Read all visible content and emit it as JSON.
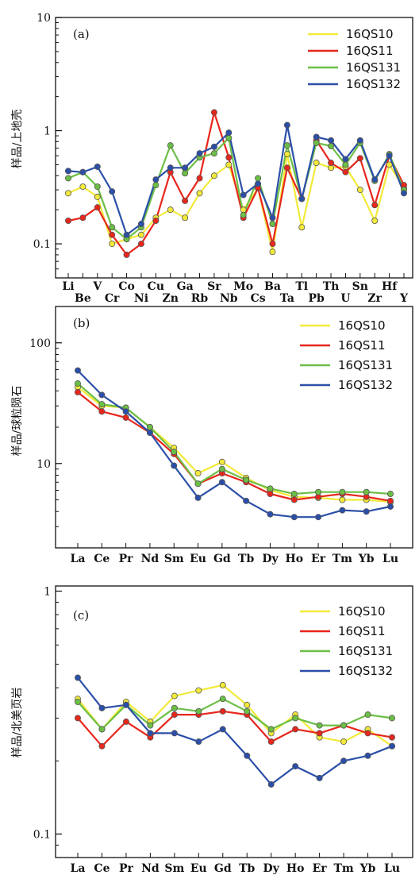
{
  "chart_data": [
    {
      "type": "line",
      "panel_label": "(a)",
      "ylabel": "样品/上地壳",
      "yscale": "log",
      "ylim": [
        0.05,
        10
      ],
      "yticks": [
        0.1,
        1,
        10
      ],
      "yticklabels": [
        "0.1",
        "1",
        "10"
      ],
      "categories": [
        "Li",
        "Be",
        "V",
        "Cr",
        "Co",
        "Ni",
        "Cu",
        "Zn",
        "Ga",
        "Rb",
        "Sr",
        "Nb",
        "Mo",
        "Cs",
        "Ba",
        "Ta",
        "Tl",
        "Pb",
        "Th",
        "U",
        "Sn",
        "Zr",
        "Hf",
        "Y"
      ],
      "legend_position": "top-right",
      "series": [
        {
          "name": "16QS10",
          "color": "#f2ea3a",
          "values": [
            0.28,
            0.32,
            0.26,
            0.1,
            0.11,
            0.12,
            0.17,
            0.2,
            0.17,
            0.28,
            0.4,
            0.5,
            0.2,
            0.31,
            0.085,
            0.62,
            0.14,
            0.52,
            0.47,
            0.48,
            0.3,
            0.16,
            0.5,
            0.31
          ]
        },
        {
          "name": "16QS11",
          "color": "#e8261c",
          "values": [
            0.16,
            0.17,
            0.21,
            0.12,
            0.08,
            0.1,
            0.16,
            0.43,
            0.24,
            0.38,
            1.45,
            0.58,
            0.17,
            0.31,
            0.1,
            0.47,
            0.25,
            0.82,
            0.52,
            0.43,
            0.57,
            0.22,
            0.6,
            0.33
          ]
        },
        {
          "name": "16QS131",
          "color": "#6cbf46",
          "values": [
            0.38,
            0.43,
            0.32,
            0.14,
            0.11,
            0.14,
            0.33,
            0.74,
            0.42,
            0.58,
            0.63,
            0.86,
            0.18,
            0.38,
            0.15,
            0.74,
            0.25,
            0.78,
            0.73,
            0.5,
            0.78,
            0.36,
            0.62,
            0.3
          ]
        },
        {
          "name": "16QS132",
          "color": "#2b4fa8",
          "values": [
            0.44,
            0.43,
            0.48,
            0.29,
            0.12,
            0.15,
            0.37,
            0.47,
            0.47,
            0.63,
            0.72,
            0.96,
            0.27,
            0.34,
            0.17,
            1.12,
            0.25,
            0.88,
            0.82,
            0.56,
            0.82,
            0.37,
            0.6,
            0.28
          ]
        }
      ]
    },
    {
      "type": "line",
      "panel_label": "(b)",
      "ylabel": "样品/球粒陨石",
      "yscale": "log",
      "ylim": [
        2,
        200
      ],
      "yticks": [
        10,
        100
      ],
      "yticklabels": [
        "10",
        "100"
      ],
      "categories": [
        "La",
        "Ce",
        "Pr",
        "Nd",
        "Sm",
        "Eu",
        "Gd",
        "Tb",
        "Dy",
        "Ho",
        "Er",
        "Tm",
        "Yb",
        "Lu"
      ],
      "legend_position": "top-right",
      "series": [
        {
          "name": "16QS10",
          "color": "#f2ea3a",
          "values": [
            43,
            30,
            29,
            20,
            13.5,
            8.3,
            10.3,
            7.6,
            6.0,
            5.3,
            5.2,
            5.0,
            5.0,
            4.8
          ]
        },
        {
          "name": "16QS11",
          "color": "#e8261c",
          "values": [
            39,
            27,
            24,
            18,
            12.0,
            6.8,
            8.3,
            7.0,
            5.6,
            5.0,
            5.3,
            5.6,
            5.3,
            4.9
          ]
        },
        {
          "name": "16QS131",
          "color": "#6cbf46",
          "values": [
            46,
            31,
            29,
            20,
            12.5,
            6.8,
            9.0,
            7.3,
            6.2,
            5.6,
            5.8,
            5.8,
            5.8,
            5.6
          ]
        },
        {
          "name": "16QS132",
          "color": "#2b4fa8",
          "values": [
            59,
            37,
            27,
            18,
            9.6,
            5.2,
            7.0,
            4.9,
            3.8,
            3.6,
            3.6,
            4.1,
            4.0,
            4.4
          ]
        }
      ]
    },
    {
      "type": "line",
      "panel_label": "(c)",
      "ylabel": "样品/北美页岩",
      "yscale": "log",
      "ylim": [
        0.08,
        1.05
      ],
      "yticks": [
        0.1,
        1
      ],
      "yticklabels": [
        "0.1",
        "1"
      ],
      "categories": [
        "La",
        "Ce",
        "Pr",
        "Nd",
        "Sm",
        "Eu",
        "Gd",
        "Tb",
        "Dy",
        "Ho",
        "Er",
        "Tm",
        "Yb",
        "Lu"
      ],
      "legend_position": "top-right",
      "series": [
        {
          "name": "16QS10",
          "color": "#f2ea3a",
          "values": [
            0.36,
            0.27,
            0.35,
            0.29,
            0.37,
            0.39,
            0.41,
            0.34,
            0.26,
            0.31,
            0.25,
            0.24,
            0.27,
            0.23
          ]
        },
        {
          "name": "16QS11",
          "color": "#e8261c",
          "values": [
            0.3,
            0.23,
            0.29,
            0.25,
            0.31,
            0.31,
            0.32,
            0.31,
            0.24,
            0.27,
            0.26,
            0.28,
            0.26,
            0.25
          ]
        },
        {
          "name": "16QS131",
          "color": "#6cbf46",
          "values": [
            0.35,
            0.27,
            0.34,
            0.28,
            0.33,
            0.32,
            0.36,
            0.32,
            0.27,
            0.3,
            0.28,
            0.28,
            0.31,
            0.3
          ]
        },
        {
          "name": "16QS132",
          "color": "#2b4fa8",
          "values": [
            0.44,
            0.33,
            0.34,
            0.26,
            0.26,
            0.24,
            0.27,
            0.21,
            0.16,
            0.19,
            0.17,
            0.2,
            0.21,
            0.23
          ]
        }
      ]
    }
  ]
}
